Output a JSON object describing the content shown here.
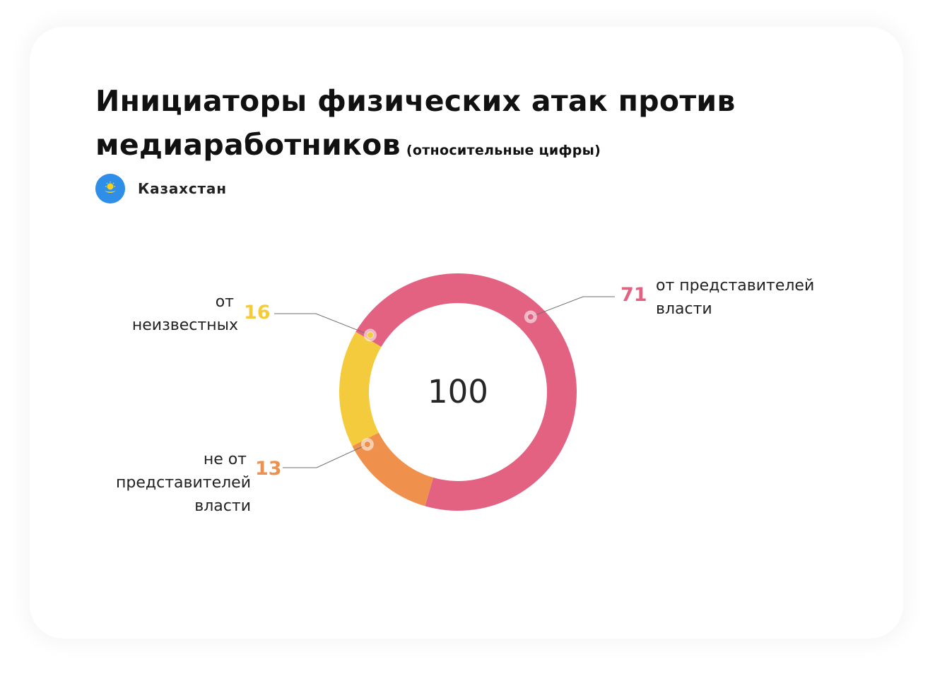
{
  "title": "Инициаторы физических атак против медиаработников",
  "subtitle": "(относительные цифры)",
  "country": {
    "name": "Казахстан",
    "flag_icon": "kazakhstan-flag-icon"
  },
  "colors": {
    "authorities": "#e36282",
    "unknown": "#f4cb3c",
    "non_authorities": "#ef914d",
    "text": "#222222",
    "flag_blue": "#2f8fe8",
    "flag_yellow": "#f9d21f"
  },
  "chart_data": {
    "type": "pie",
    "donut": true,
    "total_label": "100",
    "slices": [
      {
        "label": "от представителей власти",
        "value": 71,
        "value_label": "71",
        "color": "#e36282"
      },
      {
        "label": "не от представителей власти",
        "value": 13,
        "value_label": "13",
        "color": "#ef914d"
      },
      {
        "label": "от неизвестных",
        "value": 16,
        "value_label": "16",
        "color": "#f4cb3c"
      }
    ]
  },
  "labels": {
    "authorities": [
      "от представителей",
      "власти"
    ],
    "unknown": [
      "от",
      "неизвестных"
    ],
    "non_authorities": [
      "не от",
      "представителей",
      "власти"
    ]
  }
}
